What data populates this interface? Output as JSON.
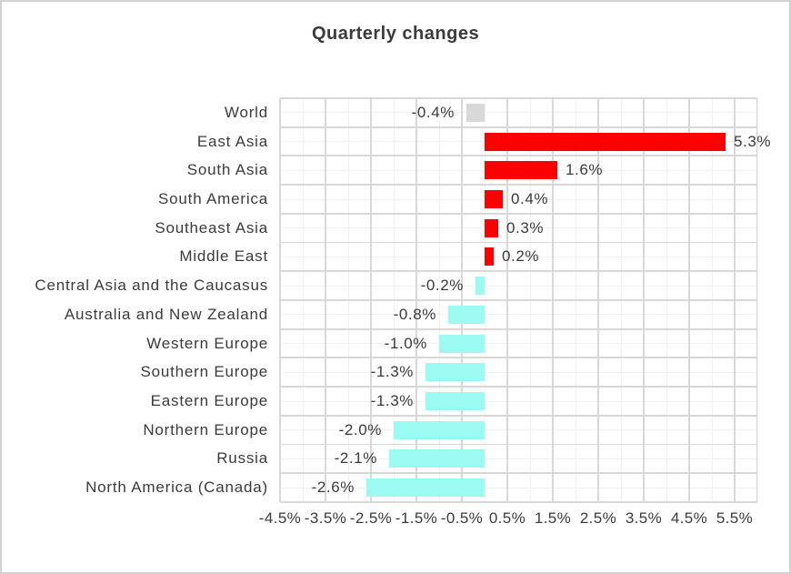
{
  "page": {
    "background": "#FFFFFF",
    "border_color": "#D2D2D2"
  },
  "chart_data": {
    "type": "bar",
    "orientation": "horizontal",
    "title": "Quarterly changes",
    "title_color": "#3B3B3B",
    "text_color": "#3B3B3B",
    "legend": "none",
    "data_label_position": "outside_end",
    "categories": [
      "World",
      "East Asia",
      "South Asia",
      "South America",
      "Southeast Asia",
      "Middle East",
      "Central Asia and the Caucasus",
      "Australia and New Zealand",
      "Western Europe",
      "Southern Europe",
      "Eastern Europe",
      "Northern Europe",
      "Russia",
      "North America (Canada)"
    ],
    "values": [
      -0.4,
      5.3,
      1.6,
      0.4,
      0.3,
      0.2,
      -0.2,
      -0.8,
      -1.0,
      -1.3,
      -1.3,
      -2.0,
      -2.1,
      -2.6
    ],
    "value_labels": [
      "-0.4%",
      "5.3%",
      "1.6%",
      "0.4%",
      "0.3%",
      "0.2%",
      "-0.2%",
      "-0.8%",
      "-1.0%",
      "-1.3%",
      "-1.3%",
      "-2.0%",
      "-2.1%",
      "-2.6%"
    ],
    "bar_roles": [
      "neutral",
      "positive",
      "positive",
      "positive",
      "positive",
      "positive",
      "negative",
      "negative",
      "negative",
      "negative",
      "negative",
      "negative",
      "negative",
      "negative"
    ],
    "colors": {
      "positive": "#FF0000",
      "negative": "#9BFBF2",
      "neutral": "#D8D8D8"
    },
    "xaxis": {
      "min": -4.5,
      "max": 6.0,
      "major_unit": 1.0,
      "minor_unit": 0.5,
      "tick_labels": [
        "-4.5%",
        "-3.5%",
        "-2.5%",
        "-1.5%",
        "-0.5%",
        "0.5%",
        "1.5%",
        "2.5%",
        "3.5%",
        "4.5%",
        "5.5%"
      ]
    },
    "grid": {
      "major_color": "#D8D8D8",
      "minor_color": "#F1F1F1"
    }
  }
}
